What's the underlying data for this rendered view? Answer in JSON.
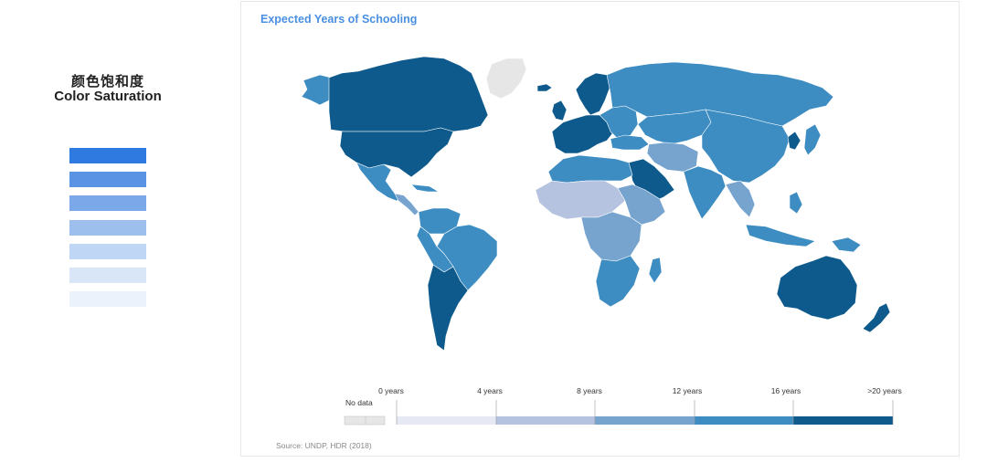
{
  "left_panel": {
    "title_cn": "颜色饱和度",
    "title_en": "Color Saturation",
    "swatches": [
      "#2f7ae0",
      "#5a93e3",
      "#7aa8e8",
      "#9dbfee",
      "#bfd6f4",
      "#d9e6f8",
      "#ecf2fc"
    ]
  },
  "map": {
    "title": "Expected Years of Schooling",
    "source": "Source: UNDP, HDR (2018)",
    "colors": {
      "no_data": "#e6e6e6",
      "level_0": "#e6e9f3",
      "level_1": "#b6c3e0",
      "level_2": "#76a4cf",
      "level_3": "#3d8dc2",
      "level_4": "#0e5a8c",
      "border": "#ffffff"
    },
    "legend": {
      "no_data_label": "No data",
      "tick_labels": [
        "0 years",
        "4 years",
        "8 years",
        "12 years",
        "16 years",
        ">20 years"
      ]
    }
  }
}
